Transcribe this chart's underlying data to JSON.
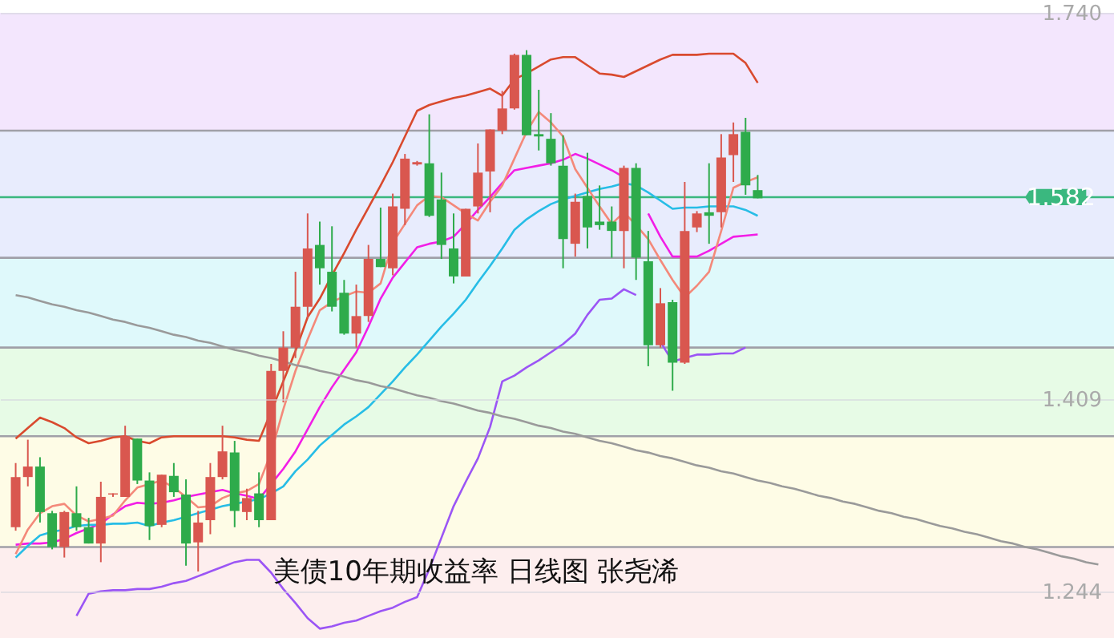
{
  "chart_data": {
    "type": "candlestick",
    "title": "美债10年期收益率  日线图 张尧浠",
    "categories": [
      null,
      null,
      null,
      null,
      null,
      null,
      null,
      null,
      null,
      null,
      null,
      null,
      null,
      null,
      null,
      null,
      null,
      null,
      null,
      null,
      null,
      null,
      null,
      null,
      null,
      null,
      null,
      null,
      null,
      null,
      null,
      null,
      null,
      null,
      null,
      null,
      null,
      null,
      null,
      null,
      null,
      null,
      null,
      null,
      null,
      null,
      null,
      null,
      null,
      null,
      null,
      null,
      null,
      null,
      null,
      null,
      null,
      null,
      null,
      null,
      null,
      null,
      null,
      null,
      null,
      null,
      null,
      null,
      null,
      null,
      null,
      null,
      null,
      null,
      null,
      null,
      null,
      null,
      null,
      null,
      null,
      null,
      null,
      null,
      null,
      null,
      null,
      null,
      null,
      null
    ],
    "ylim": [
      1.204,
      1.74
    ],
    "yticks": [
      {
        "value": 1.244,
        "label": "1.244"
      },
      {
        "value": 1.409,
        "label": "1.409"
      },
      {
        "value": 1.74,
        "label": "1.740"
      }
    ],
    "tick_labels": "y",
    "grid": "y",
    "series": [
      {
        "type": "candlestick",
        "ohlc": [
          [
            1.299,
            1.354,
            1.296,
            1.342
          ],
          [
            1.342,
            1.374,
            1.334,
            1.351
          ],
          [
            1.351,
            1.359,
            1.303,
            1.312
          ],
          [
            1.311,
            1.313,
            1.28,
            1.282
          ],
          [
            1.282,
            1.313,
            1.273,
            1.312
          ],
          [
            1.311,
            1.334,
            1.296,
            1.299
          ],
          [
            1.299,
            1.307,
            1.285,
            1.285
          ],
          [
            1.285,
            1.338,
            1.269,
            1.325
          ],
          [
            1.327,
            1.328,
            1.325,
            1.328
          ],
          [
            1.325,
            1.386,
            1.325,
            1.377
          ],
          [
            1.375,
            1.375,
            1.336,
            1.339
          ],
          [
            1.339,
            1.346,
            1.288,
            1.3
          ],
          [
            1.301,
            1.344,
            1.299,
            1.344
          ],
          [
            1.343,
            1.354,
            1.325,
            1.329
          ],
          [
            1.327,
            1.34,
            1.266,
            1.285
          ],
          [
            1.286,
            1.313,
            1.261,
            1.303
          ],
          [
            1.305,
            1.354,
            1.293,
            1.342
          ],
          [
            1.342,
            1.386,
            1.34,
            1.364
          ],
          [
            1.363,
            1.373,
            1.299,
            1.313
          ],
          [
            1.312,
            1.332,
            1.305,
            1.324
          ],
          [
            1.328,
            1.346,
            1.299,
            1.305
          ],
          [
            1.305,
            1.439,
            1.305,
            1.433
          ],
          [
            1.433,
            1.467,
            1.406,
            1.453
          ],
          [
            1.453,
            1.518,
            1.444,
            1.488
          ],
          [
            1.488,
            1.568,
            1.478,
            1.538
          ],
          [
            1.541,
            1.561,
            1.507,
            1.521
          ],
          [
            1.518,
            1.557,
            1.484,
            1.488
          ],
          [
            1.5,
            1.511,
            1.464,
            1.465
          ],
          [
            1.465,
            1.507,
            1.453,
            1.48
          ],
          [
            1.48,
            1.541,
            1.475,
            1.529
          ],
          [
            1.529,
            1.573,
            1.522,
            1.522
          ],
          [
            1.521,
            1.585,
            1.515,
            1.574
          ],
          [
            1.572,
            1.619,
            1.558,
            1.615
          ],
          [
            1.61,
            1.613,
            1.609,
            1.612
          ],
          [
            1.611,
            1.653,
            1.565,
            1.566
          ],
          [
            1.58,
            1.603,
            1.529,
            1.541
          ],
          [
            1.538,
            1.568,
            1.508,
            1.514
          ],
          [
            1.514,
            1.572,
            1.514,
            1.572
          ],
          [
            1.574,
            1.628,
            1.568,
            1.603
          ],
          [
            1.604,
            1.64,
            1.569,
            1.64
          ],
          [
            1.639,
            1.673,
            1.636,
            1.658
          ],
          [
            1.658,
            1.705,
            1.657,
            1.704
          ],
          [
            1.704,
            1.708,
            1.635,
            1.635
          ],
          [
            1.636,
            1.674,
            1.622,
            1.634
          ],
          [
            1.632,
            1.654,
            1.609,
            1.611
          ],
          [
            1.609,
            1.635,
            1.521,
            1.546
          ],
          [
            1.542,
            1.585,
            1.531,
            1.578
          ],
          [
            1.583,
            1.62,
            1.538,
            1.556
          ],
          [
            1.561,
            1.592,
            1.554,
            1.558
          ],
          [
            1.561,
            1.574,
            1.53,
            1.553
          ],
          [
            1.553,
            1.609,
            1.521,
            1.607
          ],
          [
            1.607,
            1.611,
            1.511,
            1.53
          ],
          [
            1.527,
            1.553,
            1.437,
            1.455
          ],
          [
            1.455,
            1.504,
            1.453,
            1.491
          ],
          [
            1.492,
            1.494,
            1.416,
            1.44
          ],
          [
            1.44,
            1.595,
            1.439,
            1.553
          ],
          [
            1.556,
            1.57,
            1.552,
            1.568
          ],
          [
            1.569,
            1.611,
            1.542,
            1.566
          ],
          [
            1.569,
            1.636,
            1.556,
            1.616
          ],
          [
            1.618,
            1.646,
            1.595,
            1.636
          ],
          [
            1.638,
            1.65,
            1.584,
            1.592
          ],
          [
            1.588,
            1.601,
            1.581,
            1.581
          ],
          null,
          null,
          null,
          null,
          null,
          null,
          null,
          null,
          null,
          null,
          null,
          null,
          null,
          null,
          null,
          null,
          null,
          null,
          null,
          null,
          null,
          null,
          null,
          null,
          null,
          null,
          null,
          null
        ],
        "colors": [
          "#d9574f",
          "#d9574f",
          "#2eab4b",
          "#2eab4b",
          "#d9574f",
          "#2eab4b",
          "#2eab4b",
          "#d9574f",
          "#d9574f",
          "#d9574f",
          "#2eab4b",
          "#2eab4b",
          "#d9574f",
          "#2eab4b",
          "#2eab4b",
          "#d9574f",
          "#d9574f",
          "#d9574f",
          "#2eab4b",
          "#d9574f",
          "#2eab4b",
          "#d9574f",
          "#d9574f",
          "#d9574f",
          "#d9574f",
          "#2eab4b",
          "#2eab4b",
          "#2eab4b",
          "#d9574f",
          "#d9574f",
          "#2eab4b",
          "#d9574f",
          "#d9574f",
          "#d9574f",
          "#2eab4b",
          "#2eab4b",
          "#2eab4b",
          "#d9574f",
          "#d9574f",
          "#d9574f",
          "#d9574f",
          "#d9574f",
          "#2eab4b",
          "#2eab4b",
          "#2eab4b",
          "#2eab4b",
          "#d9574f",
          "#2eab4b",
          "#2eab4b",
          "#2eab4b",
          "#d9574f",
          "#2eab4b",
          "#2eab4b",
          "#d9574f",
          "#2eab4b",
          "#d9574f",
          "#d9574f",
          "#2eab4b",
          "#d9574f",
          "#d9574f",
          "#2eab4b",
          "#2eab4b",
          null,
          null,
          null,
          null,
          null,
          null,
          null,
          null,
          null,
          null,
          null,
          null,
          null,
          null,
          null,
          null,
          null,
          null,
          null,
          null,
          null,
          null,
          null,
          null,
          null,
          null,
          null,
          null
        ]
      },
      {
        "type": "line",
        "color": "#d94a2e",
        "values": [
          1.375,
          1.384,
          1.393,
          1.389,
          1.384,
          1.376,
          1.371,
          1.373,
          1.376,
          1.377,
          1.373,
          1.371,
          1.376,
          1.377,
          1.377,
          1.377,
          1.377,
          1.377,
          1.376,
          1.374,
          1.373,
          1.398,
          1.424,
          1.45,
          1.479,
          1.495,
          1.515,
          1.534,
          1.554,
          1.573,
          1.592,
          1.612,
          1.634,
          1.656,
          1.661,
          1.664,
          1.667,
          1.669,
          1.672,
          1.675,
          1.669,
          1.683,
          1.688,
          1.694,
          1.7,
          1.702,
          1.702,
          1.695,
          1.688,
          1.687,
          1.685,
          1.69,
          1.695,
          1.7,
          1.704,
          1.704,
          1.704,
          1.705,
          1.705,
          1.705,
          1.697,
          1.68,
          null,
          null,
          null,
          null,
          null,
          null,
          null,
          null,
          null,
          null,
          null,
          null,
          null,
          null,
          null,
          null,
          null,
          null,
          null,
          null,
          null,
          null,
          null,
          null,
          null,
          null,
          null,
          null
        ]
      },
      {
        "type": "line",
        "color": "#9b55f5",
        "values": [
          null,
          null,
          null,
          null,
          null,
          1.223,
          1.242,
          1.244,
          1.245,
          1.245,
          1.246,
          1.246,
          1.248,
          1.251,
          1.253,
          1.257,
          1.261,
          1.265,
          1.269,
          1.271,
          1.271,
          1.26,
          1.246,
          1.234,
          1.221,
          1.212,
          1.214,
          1.217,
          1.219,
          1.223,
          1.227,
          1.23,
          1.235,
          1.239,
          1.263,
          1.29,
          1.317,
          1.338,
          1.358,
          1.385,
          1.424,
          1.429,
          1.436,
          1.442,
          1.449,
          1.456,
          1.465,
          1.481,
          1.494,
          1.495,
          1.503,
          1.498,
          null,
          1.458,
          1.441,
          1.444,
          1.447,
          1.447,
          1.448,
          1.448,
          1.453,
          null,
          null,
          null,
          null,
          null,
          null,
          null,
          null,
          null,
          null,
          null,
          null,
          null,
          null,
          null,
          null,
          null,
          null,
          null,
          null,
          null,
          null,
          null,
          null,
          null,
          null,
          null,
          null,
          null
        ]
      },
      {
        "type": "line",
        "color": "#f21ee6",
        "values": [
          1.284,
          1.285,
          1.285,
          1.286,
          1.289,
          1.294,
          1.298,
          1.302,
          1.31,
          1.317,
          1.32,
          1.319,
          1.32,
          1.322,
          1.325,
          1.327,
          1.329,
          1.331,
          1.328,
          1.326,
          1.323,
          1.336,
          1.349,
          1.364,
          1.383,
          1.402,
          1.419,
          1.434,
          1.449,
          1.471,
          1.495,
          1.513,
          1.526,
          1.539,
          1.542,
          1.544,
          1.548,
          1.559,
          1.571,
          1.582,
          1.594,
          1.605,
          1.607,
          1.609,
          1.611,
          1.614,
          1.619,
          1.615,
          1.61,
          1.605,
          1.599,
          null,
          1.568,
          1.548,
          1.531,
          1.531,
          1.531,
          1.536,
          1.542,
          1.548,
          1.549,
          1.55,
          null,
          null,
          null,
          null,
          null,
          null,
          null,
          null,
          null,
          null,
          null,
          null,
          null,
          null,
          null,
          null,
          null,
          null,
          null,
          null,
          null,
          null,
          null,
          null,
          null,
          null,
          null,
          null
        ]
      },
      {
        "type": "line",
        "color": "#27bde6",
        "values": [
          1.273,
          1.283,
          1.292,
          1.295,
          1.297,
          1.3,
          1.301,
          1.301,
          1.302,
          1.302,
          1.303,
          1.3,
          1.303,
          1.305,
          1.308,
          1.311,
          1.314,
          1.317,
          1.319,
          1.321,
          1.323,
          1.328,
          1.334,
          1.347,
          1.357,
          1.369,
          1.378,
          1.387,
          1.394,
          1.402,
          1.413,
          1.424,
          1.436,
          1.447,
          1.459,
          1.471,
          1.482,
          1.494,
          1.509,
          1.523,
          1.538,
          1.554,
          1.563,
          1.57,
          1.576,
          1.58,
          1.583,
          1.586,
          1.589,
          1.591,
          1.594,
          1.592,
          1.586,
          1.579,
          1.572,
          1.573,
          1.573,
          1.574,
          1.574,
          1.574,
          1.571,
          1.566,
          null,
          null,
          null,
          null,
          null,
          null,
          null,
          null,
          null,
          null,
          null,
          null,
          null,
          null,
          null,
          null,
          null,
          null,
          null,
          null,
          null,
          null,
          null,
          null,
          null,
          null,
          null,
          null
        ]
      },
      {
        "type": "line",
        "color": "#f4897a",
        "values": [
          1.276,
          1.297,
          1.311,
          1.317,
          1.319,
          1.309,
          1.304,
          1.306,
          1.309,
          1.322,
          1.333,
          1.336,
          1.339,
          1.333,
          1.325,
          1.316,
          1.317,
          1.324,
          1.328,
          1.33,
          1.336,
          1.363,
          1.4,
          1.433,
          1.46,
          1.485,
          1.492,
          1.497,
          1.501,
          1.5,
          1.508,
          1.543,
          1.559,
          1.575,
          1.583,
          1.582,
          1.575,
          1.568,
          1.562,
          1.578,
          1.592,
          1.615,
          1.638,
          1.655,
          1.646,
          1.634,
          1.606,
          1.59,
          1.574,
          1.559,
          1.569,
          1.558,
          1.546,
          1.528,
          1.511,
          1.496,
          1.506,
          1.518,
          1.553,
          1.59,
          1.595,
          1.599,
          null,
          null,
          null,
          null,
          null,
          null,
          null,
          null,
          null,
          null,
          null,
          null,
          null,
          null,
          null,
          null,
          null,
          null,
          null,
          null,
          null,
          null,
          null,
          null,
          null,
          null,
          null,
          null
        ]
      },
      {
        "type": "line",
        "color": "#9a9a9a",
        "values": [
          1.498,
          1.496,
          1.493,
          1.49,
          1.488,
          1.485,
          1.483,
          1.48,
          1.477,
          1.475,
          1.472,
          1.47,
          1.467,
          1.464,
          1.462,
          1.459,
          1.457,
          1.454,
          1.451,
          1.449,
          1.446,
          1.444,
          1.441,
          1.438,
          1.436,
          1.433,
          1.431,
          1.428,
          1.425,
          1.423,
          1.42,
          1.418,
          1.415,
          1.412,
          1.41,
          1.407,
          1.405,
          1.402,
          1.399,
          1.397,
          1.394,
          1.392,
          1.389,
          1.386,
          1.384,
          1.381,
          1.379,
          1.376,
          1.373,
          1.371,
          1.368,
          1.365,
          1.363,
          1.36,
          1.358,
          1.355,
          1.352,
          1.35,
          1.347,
          1.345,
          1.342,
          1.339,
          1.337,
          1.334,
          1.332,
          1.329,
          1.326,
          1.324,
          1.321,
          1.319,
          1.316,
          1.313,
          1.311,
          1.308,
          1.306,
          1.303,
          1.3,
          1.298,
          1.295,
          1.293,
          1.29,
          1.287,
          1.285,
          1.282,
          1.28,
          1.277,
          1.274,
          1.272,
          1.269,
          1.267
        ]
      }
    ],
    "ref_lines": [
      {
        "axis": "y",
        "value": 1.639,
        "color": "#a0a0a8"
      },
      {
        "axis": "y",
        "value": 1.53,
        "color": "#a0a0a8"
      },
      {
        "axis": "y",
        "value": 1.453,
        "color": "#a0a0a8"
      },
      {
        "axis": "y",
        "value": 1.377,
        "color": "#a0a0a8"
      },
      {
        "axis": "y",
        "value": 1.282,
        "color": "#a0a0a8"
      },
      {
        "axis": "y",
        "value": 1.582,
        "label": "1.582",
        "color": "#3ab87f"
      }
    ],
    "bands": [
      {
        "axis": "y",
        "from": 1.639,
        "to": 1.74,
        "color": "#f3e6fd"
      },
      {
        "axis": "y",
        "from": 1.53,
        "to": 1.639,
        "color": "#e8ecfd"
      },
      {
        "axis": "y",
        "from": 1.453,
        "to": 1.53,
        "color": "#dff9fb"
      },
      {
        "axis": "y",
        "from": 1.377,
        "to": 1.453,
        "color": "#e7fbe6"
      },
      {
        "axis": "y",
        "from": 1.282,
        "to": 1.377,
        "color": "#fefce6"
      },
      {
        "axis": "y",
        "from": 1.204,
        "to": 1.282,
        "color": "#fdeeee"
      }
    ]
  }
}
